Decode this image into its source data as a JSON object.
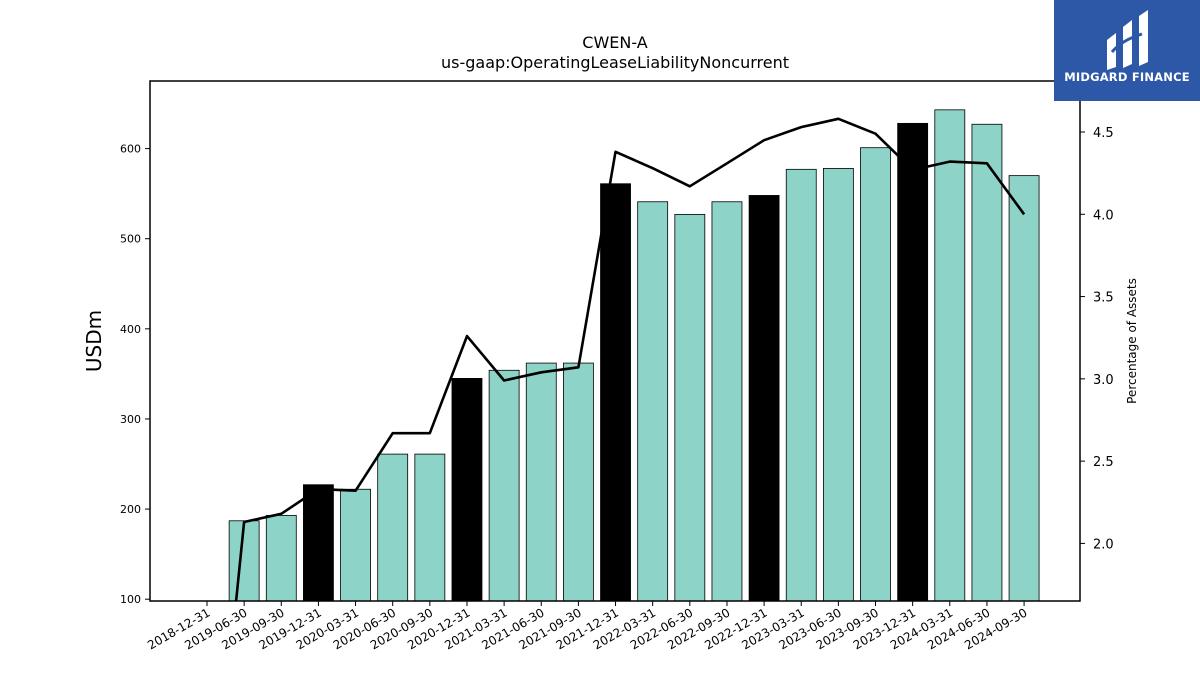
{
  "brand": {
    "name": "MIDGARD FINANCE",
    "bg_color": "#2d57a7"
  },
  "chart_data": {
    "type": "bar",
    "title": "CWEN-A",
    "subtitle": "us-gaap:OperatingLeaseLiabilityNoncurrent",
    "ylabel": "USDm",
    "y2label": "Percentage of Assets",
    "ylim": [
      98,
      675
    ],
    "y2lim": [
      1.65,
      4.81
    ],
    "yticks": [
      100,
      200,
      300,
      400,
      500,
      600
    ],
    "y2ticks": [
      2.0,
      2.5,
      3.0,
      3.5,
      4.0,
      4.5
    ],
    "colors": {
      "quarter": "#8dd3c7",
      "year_end": "#000000",
      "line": "#000000"
    },
    "categories": [
      "2018-12-31",
      "2019-06-30",
      "2019-09-30",
      "2019-12-31",
      "2020-03-31",
      "2020-06-30",
      "2020-09-30",
      "2020-12-31",
      "2021-03-31",
      "2021-06-30",
      "2021-09-30",
      "2021-12-31",
      "2022-03-31",
      "2022-06-30",
      "2022-09-30",
      "2022-12-31",
      "2023-03-31",
      "2023-06-30",
      "2023-09-30",
      "2023-12-31",
      "2024-03-31",
      "2024-06-30",
      "2024-09-30"
    ],
    "series": [
      {
        "type": "bar",
        "values": [
          null,
          187,
          193,
          227,
          222,
          261,
          261,
          345,
          354,
          362,
          362,
          561,
          541,
          527,
          541,
          548,
          577,
          578,
          601,
          628,
          643,
          627,
          570
        ],
        "year_end": [
          false,
          false,
          false,
          true,
          false,
          false,
          false,
          true,
          false,
          false,
          false,
          true,
          false,
          false,
          false,
          true,
          false,
          false,
          false,
          true,
          false,
          false,
          false
        ]
      },
      {
        "type": "line",
        "axis": "right",
        "values": [
          null,
          2.13,
          2.18,
          2.33,
          2.32,
          2.67,
          2.67,
          3.26,
          2.99,
          3.04,
          3.07,
          4.38,
          4.28,
          4.17,
          4.31,
          4.45,
          4.53,
          4.58,
          4.49,
          4.27,
          4.32,
          4.31,
          4.0
        ],
        "start_value": 1.65
      }
    ]
  }
}
